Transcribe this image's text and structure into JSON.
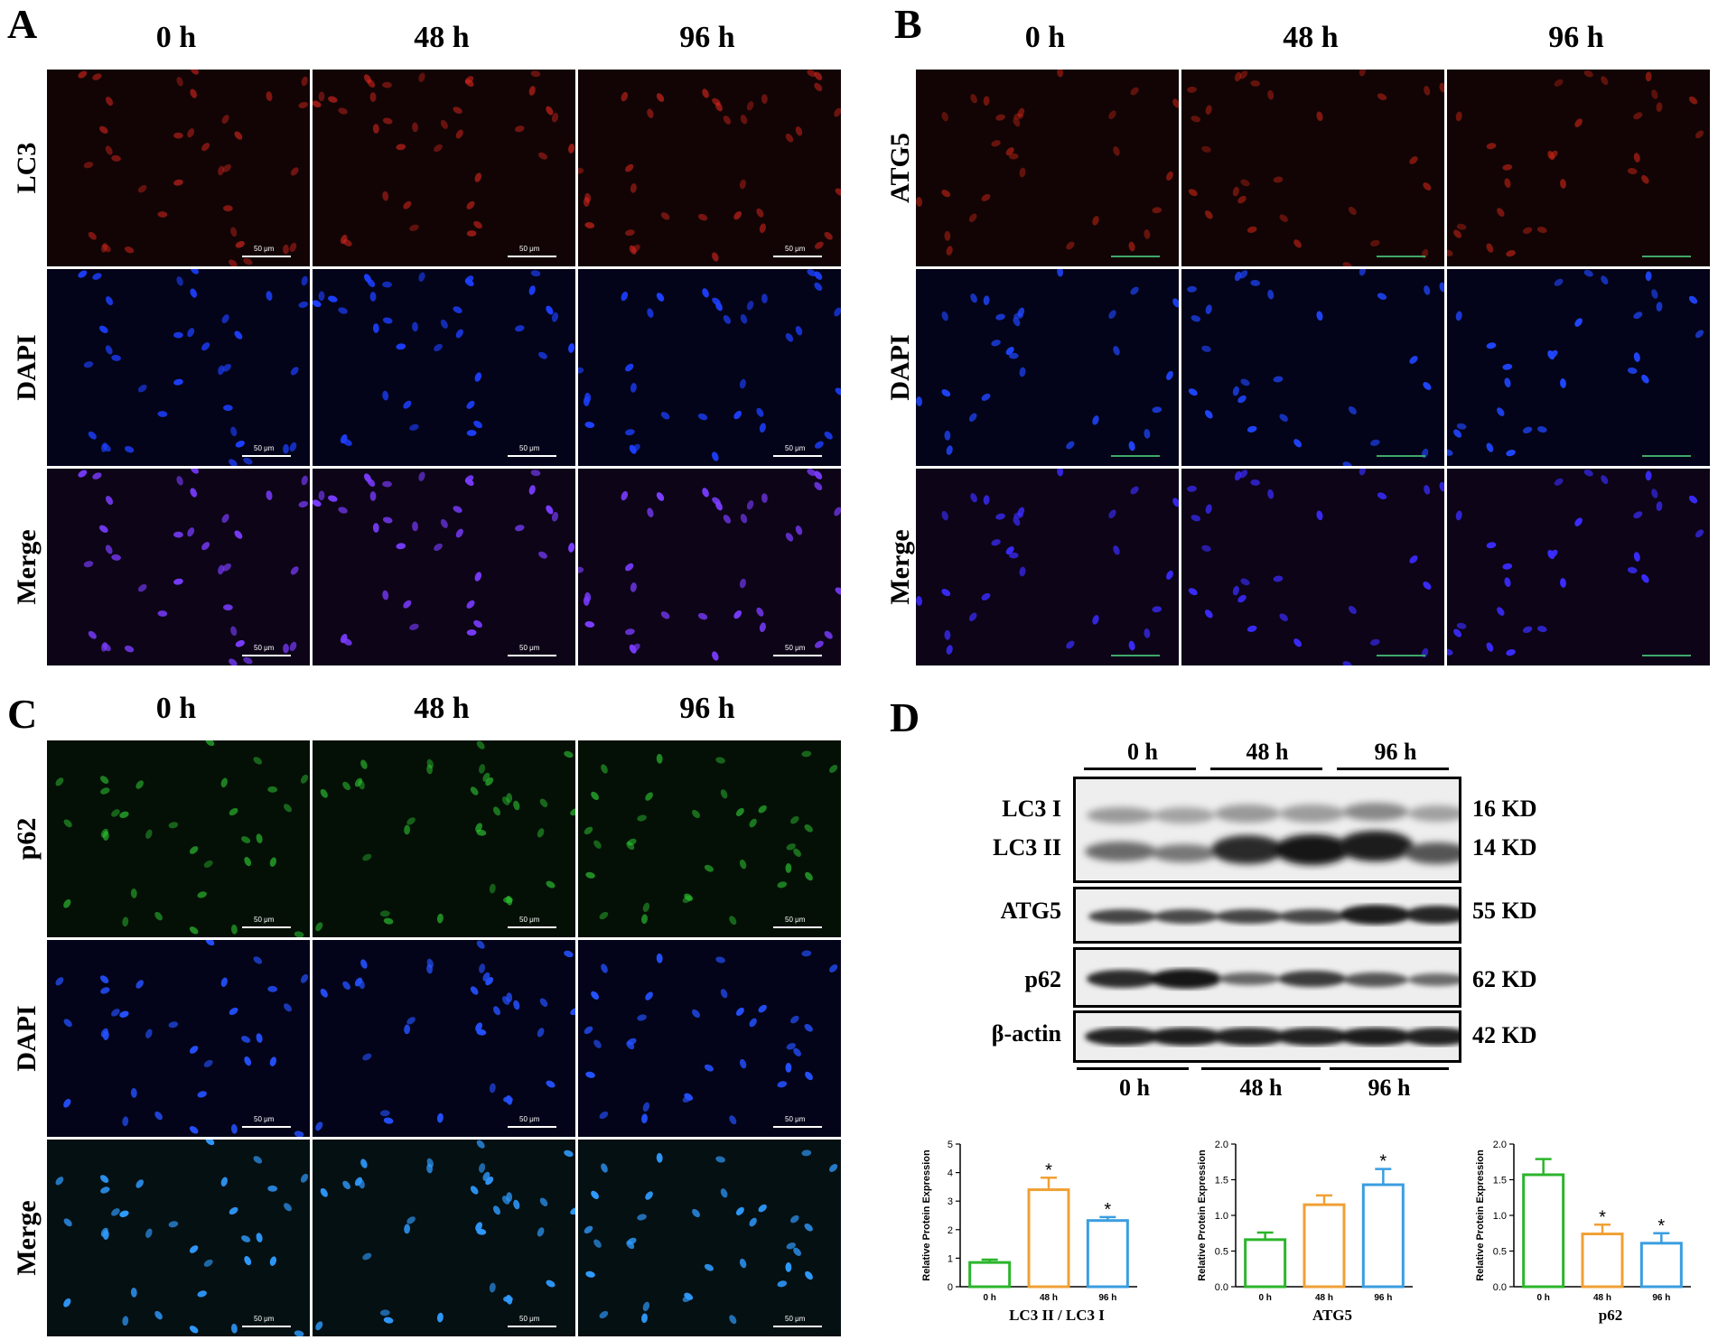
{
  "panels": {
    "A": {
      "label": "A",
      "columns": [
        "0 h",
        "48 h",
        "96 h"
      ],
      "rows": [
        "LC3",
        "DAPI",
        "Merge"
      ],
      "scale_bar": "50 μm",
      "colors": {
        "stain": "#d8261f",
        "dapi": "#1d3fff",
        "merge": "#7a3cff"
      }
    },
    "B": {
      "label": "B",
      "columns": [
        "0 h",
        "48 h",
        "96 h"
      ],
      "rows": [
        "ATG5",
        "DAPI",
        "Merge"
      ],
      "scale_bar": "50 μm",
      "colors": {
        "stain": "#c42416",
        "dapi": "#2046ff",
        "merge": "#3b2cff"
      }
    },
    "C": {
      "label": "C",
      "columns": [
        "0 h",
        "48 h",
        "96 h"
      ],
      "rows": [
        "p62",
        "DAPI",
        "Merge"
      ],
      "scale_bar": "50 μm",
      "colors": {
        "stain": "#2fce34",
        "dapi": "#2451ff",
        "merge": "#2f9bff"
      }
    }
  },
  "blot": {
    "label": "D",
    "groups_top": [
      "0 h",
      "48 h",
      "96 h"
    ],
    "groups_bottom": [
      "0 h",
      "48 h",
      "96 h"
    ],
    "rows": [
      {
        "labels": [
          "LC3 I",
          "LC3 II"
        ],
        "kd": [
          "16 KD",
          "14 KD"
        ]
      },
      {
        "labels": [
          "ATG5"
        ],
        "kd": [
          "55 KD"
        ]
      },
      {
        "labels": [
          "p62"
        ],
        "kd": [
          "62 KD"
        ]
      },
      {
        "labels": [
          "β-actin"
        ],
        "kd": [
          "42 KD"
        ]
      }
    ]
  },
  "chart_data": [
    {
      "type": "bar",
      "categories": [
        "0 h",
        "48 h",
        "96 h"
      ],
      "values": [
        0.85,
        3.4,
        2.32
      ],
      "errors": [
        0.1,
        0.42,
        0.12
      ],
      "significance": [
        "",
        "*",
        "*"
      ],
      "colors": [
        "#2bb52b",
        "#f0a035",
        "#3a9ee0"
      ],
      "ylabel": "Relative Protein Expression",
      "xlabel": "LC3 II / LC3 I",
      "ylim": [
        0,
        5
      ],
      "yticks": [
        "0",
        "1",
        "2",
        "3",
        "4",
        "5"
      ],
      "ytick_values": [
        0,
        1,
        2,
        3,
        4,
        5
      ]
    },
    {
      "type": "bar",
      "categories": [
        "0 h",
        "48 h",
        "96 h"
      ],
      "values": [
        0.66,
        1.15,
        1.43
      ],
      "errors": [
        0.1,
        0.13,
        0.22
      ],
      "significance": [
        "",
        "",
        "*"
      ],
      "colors": [
        "#2bb52b",
        "#f0a035",
        "#3a9ee0"
      ],
      "ylabel": "Relative Protein Expression",
      "xlabel": "ATG5",
      "ylim": [
        0,
        2.0
      ],
      "yticks": [
        "0.0",
        "0.5",
        "1.0",
        "1.5",
        "2.0"
      ],
      "ytick_values": [
        0,
        0.5,
        1.0,
        1.5,
        2.0
      ]
    },
    {
      "type": "bar",
      "categories": [
        "0 h",
        "48 h",
        "96 h"
      ],
      "values": [
        1.57,
        0.74,
        0.61
      ],
      "errors": [
        0.22,
        0.13,
        0.14
      ],
      "significance": [
        "",
        "*",
        "*"
      ],
      "colors": [
        "#2bb52b",
        "#f0a035",
        "#3a9ee0"
      ],
      "ylabel": "Relative Protein Expression",
      "xlabel": "p62",
      "ylim": [
        0,
        2.0
      ],
      "yticks": [
        "0.0",
        "0.5",
        "1.0",
        "1.5",
        "2.0"
      ],
      "ytick_values": [
        0,
        0.5,
        1.0,
        1.5,
        2.0
      ]
    }
  ]
}
